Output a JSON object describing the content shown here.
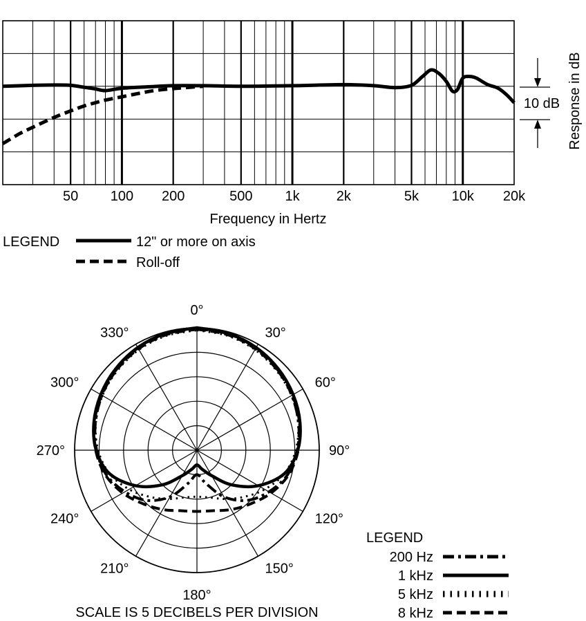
{
  "chart_data": [
    {
      "type": "line",
      "xscale": "log",
      "xlim": [
        20,
        20000
      ],
      "ylim": [
        -30,
        20
      ],
      "grid": true,
      "title": "",
      "xlabel": "Frequency in Hertz",
      "ylabel": "Response in dB",
      "xticks": [
        {
          "value": 50,
          "label": "50"
        },
        {
          "value": 100,
          "label": "100"
        },
        {
          "value": 200,
          "label": "200"
        },
        {
          "value": 500,
          "label": "500"
        },
        {
          "value": 1000,
          "label": "1k"
        },
        {
          "value": 2000,
          "label": "2k"
        },
        {
          "value": 5000,
          "label": "5k"
        },
        {
          "value": 10000,
          "label": "10k"
        },
        {
          "value": 20000,
          "label": "20k"
        }
      ],
      "scale_annotation": "10 dB",
      "legend_title": "LEGEND",
      "series": [
        {
          "name": "12\" or more on axis",
          "style": "solid",
          "x": [
            20,
            30,
            40,
            50,
            60,
            70,
            80,
            100,
            150,
            200,
            300,
            500,
            1000,
            2000,
            3000,
            4000,
            5000,
            5800,
            6500,
            7200,
            8000,
            8700,
            9300,
            10000,
            11000,
            12000,
            14000,
            16000,
            18000,
            20000
          ],
          "y": [
            0,
            0.3,
            0.4,
            0.3,
            -0.3,
            -0.8,
            -1.3,
            -0.6,
            -0.1,
            0.2,
            0.2,
            0,
            0.2,
            0.5,
            0.2,
            -0.4,
            0.3,
            3,
            5,
            4,
            1.5,
            -1.5,
            -1,
            2.5,
            3,
            2.5,
            0.5,
            -0.5,
            -2.5,
            -5
          ]
        },
        {
          "name": "Roll-off",
          "style": "dashed",
          "x": [
            20,
            25,
            30,
            40,
            50,
            60,
            70,
            80,
            100,
            130,
            160,
            200,
            250,
            300
          ],
          "y": [
            -17.5,
            -14.5,
            -12.5,
            -9.5,
            -7.5,
            -6,
            -5,
            -4.2,
            -3.2,
            -2,
            -1.2,
            -0.7,
            -0.3,
            0
          ]
        }
      ]
    },
    {
      "type": "polar",
      "rings": 5,
      "angle_labels": [
        "0°",
        "30°",
        "60°",
        "90°",
        "120°",
        "150°",
        "180°",
        "210°",
        "240°",
        "270°",
        "300°",
        "330°"
      ],
      "scale_note": "SCALE IS 5 DECIBELS PER DIVISION",
      "legend_title": "LEGEND",
      "series": [
        {
          "name": "200 Hz",
          "style": "dash-dot",
          "angles": [
            0,
            15,
            30,
            45,
            60,
            75,
            90,
            105,
            120,
            135,
            150,
            165,
            180
          ],
          "values": [
            -0.2,
            -0.4,
            -0.9,
            -1.7,
            -2.6,
            -3.5,
            -4.5,
            -5.8,
            -8,
            -10.5,
            -14,
            -18,
            -20
          ]
        },
        {
          "name": "1 kHz",
          "style": "solid",
          "angles": [
            0,
            15,
            30,
            45,
            60,
            75,
            90,
            105,
            120,
            135,
            150,
            165,
            180
          ],
          "values": [
            0,
            -0.3,
            -0.8,
            -1.5,
            -2.3,
            -3.2,
            -4.4,
            -6.5,
            -10.5,
            -15,
            -19,
            -21,
            -22
          ]
        },
        {
          "name": "5 kHz",
          "style": "dotted",
          "angles": [
            0,
            15,
            30,
            45,
            60,
            75,
            90,
            105,
            120,
            135,
            150,
            165,
            180
          ],
          "values": [
            -0.5,
            -0.8,
            -1.3,
            -2,
            -2.7,
            -3.6,
            -4.8,
            -6.5,
            -9,
            -11.5,
            -13.5,
            -15,
            -15.5
          ]
        },
        {
          "name": "8 kHz",
          "style": "dashed",
          "angles": [
            0,
            15,
            30,
            45,
            60,
            75,
            90,
            105,
            120,
            135,
            150,
            165,
            180
          ],
          "values": [
            -0.3,
            -0.6,
            -1.1,
            -1.8,
            -2.5,
            -3.3,
            -4.3,
            -5.6,
            -7.5,
            -9.5,
            -11,
            -12.2,
            -12.5
          ]
        }
      ]
    }
  ]
}
